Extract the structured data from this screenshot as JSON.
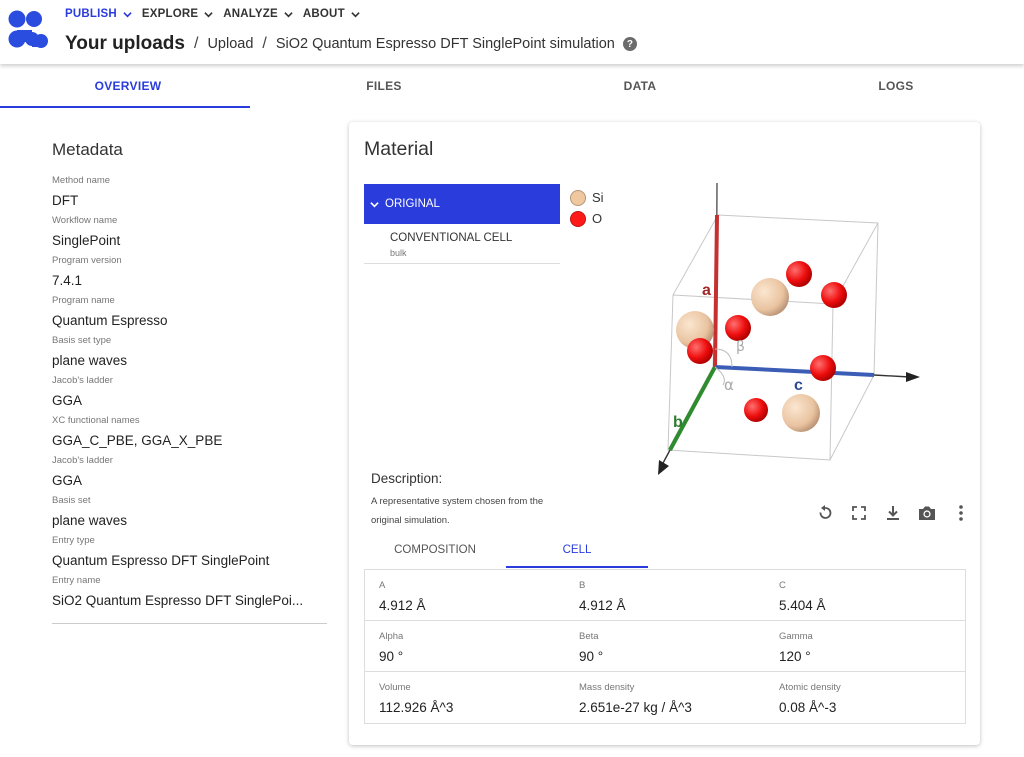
{
  "nav": {
    "items": [
      {
        "label": "PUBLISH",
        "active": true
      },
      {
        "label": "EXPLORE",
        "active": false
      },
      {
        "label": "ANALYZE",
        "active": false
      },
      {
        "label": "ABOUT",
        "active": false
      }
    ]
  },
  "breadcrumb": {
    "main": "Your uploads",
    "sep1": "/",
    "upload": "Upload",
    "sep2": "/",
    "entry": "SiO2 Quantum Espresso DFT SinglePoint simulation",
    "help_icon": "?"
  },
  "tabs": [
    {
      "label": "OVERVIEW",
      "active": true
    },
    {
      "label": "FILES",
      "active": false
    },
    {
      "label": "DATA",
      "active": false
    },
    {
      "label": "LOGS",
      "active": false
    }
  ],
  "metadata": {
    "title": "Metadata",
    "items": [
      {
        "label": "Method name",
        "value": "DFT"
      },
      {
        "label": "Workflow name",
        "value": "SinglePoint"
      },
      {
        "label": "Program version",
        "value": "7.4.1"
      },
      {
        "label": "Program name",
        "value": "Quantum Espresso"
      },
      {
        "label": "Basis set type",
        "value": "plane waves"
      },
      {
        "label": "Jacob's ladder",
        "value": "GGA"
      },
      {
        "label": "XC functional names",
        "value": "GGA_C_PBE, GGA_X_PBE"
      },
      {
        "label": "Jacob's ladder",
        "value": "GGA"
      },
      {
        "label": "Basis set",
        "value": "plane waves"
      },
      {
        "label": "Entry type",
        "value": "Quantum Espresso DFT SinglePoint"
      },
      {
        "label": "Entry name",
        "value": "SiO2 Quantum Espresso DFT SinglePoi..."
      }
    ]
  },
  "material": {
    "title": "Material",
    "tree": {
      "selected": "ORIGINAL",
      "item_title": "CONVENTIONAL CELL",
      "item_subtitle": "bulk"
    },
    "legend": [
      {
        "symbol": "Si",
        "color": "#f0c8a0"
      },
      {
        "symbol": "O",
        "color": "#ff0d0d"
      }
    ],
    "viewer": {
      "axis_a": "a",
      "axis_b": "b",
      "axis_c": "c",
      "angle_alpha": "α",
      "angle_beta": "β",
      "axis_colors": {
        "a": "#c53030",
        "b": "#2e8b2e",
        "c": "#3b5db5"
      }
    },
    "description_title": "Description:",
    "description_text": "A representative system chosen from the original simulation.",
    "toolbar": [
      "reset-view-icon",
      "fullscreen-icon",
      "download-icon",
      "camera-icon",
      "more-vert-icon"
    ],
    "subtabs": [
      {
        "label": "COMPOSITION",
        "active": false
      },
      {
        "label": "CELL",
        "active": true
      }
    ],
    "cell": {
      "rows": [
        [
          {
            "label": "A",
            "value": "4.912 Å"
          },
          {
            "label": "B",
            "value": "4.912 Å"
          },
          {
            "label": "C",
            "value": "5.404 Å"
          }
        ],
        [
          {
            "label": "Alpha",
            "value": "90 °"
          },
          {
            "label": "Beta",
            "value": "90 °"
          },
          {
            "label": "Gamma",
            "value": "120 °"
          }
        ],
        [
          {
            "label": "Volume",
            "value": "112.926 Å^3"
          },
          {
            "label": "Mass density",
            "value": "2.651e-27 kg / Å^3"
          },
          {
            "label": "Atomic density",
            "value": "0.08 Å^-3"
          }
        ]
      ]
    }
  },
  "colors": {
    "accent": "#2a3cdb",
    "logo": "#2a4cdf"
  }
}
